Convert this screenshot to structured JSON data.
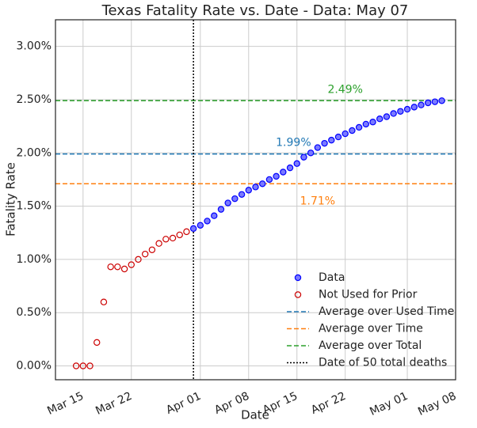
{
  "chart_data": {
    "type": "scatter",
    "title": "Texas Fatality Rate vs. Date - Data: May 07",
    "xlabel": "Date",
    "ylabel": "Fatality Rate",
    "xlim": [
      "03-11",
      "05-08"
    ],
    "ylim": [
      -0.13,
      3.25
    ],
    "xticks": [
      {
        "value": "03-15",
        "label": "Mar 15"
      },
      {
        "value": "03-22",
        "label": "Mar 22"
      },
      {
        "value": "04-01",
        "label": "Apr 01"
      },
      {
        "value": "04-08",
        "label": "Apr 08"
      },
      {
        "value": "04-15",
        "label": "Apr 15"
      },
      {
        "value": "04-22",
        "label": "Apr 22"
      },
      {
        "value": "05-01",
        "label": "May 01"
      },
      {
        "value": "05-08",
        "label": "May 08"
      }
    ],
    "yticks": [
      {
        "value": 0,
        "label": "0.00%"
      },
      {
        "value": 0.5,
        "label": "0.50%"
      },
      {
        "value": 1,
        "label": "1.00%"
      },
      {
        "value": 1.5,
        "label": "1.50%"
      },
      {
        "value": 2,
        "label": "2.00%"
      },
      {
        "value": 2.5,
        "label": "2.50%"
      },
      {
        "value": 3,
        "label": "3.00%"
      }
    ],
    "grid": true,
    "legend": "lower right",
    "series": [
      {
        "name": "Data",
        "color": "#0000ff",
        "x": [
          "03-31",
          "04-01",
          "04-02",
          "04-03",
          "04-04",
          "04-05",
          "04-06",
          "04-07",
          "04-08",
          "04-09",
          "04-10",
          "04-11",
          "04-12",
          "04-13",
          "04-14",
          "04-15",
          "04-16",
          "04-17",
          "04-18",
          "04-19",
          "04-20",
          "04-21",
          "04-22",
          "04-23",
          "04-24",
          "04-25",
          "04-26",
          "04-27",
          "04-28",
          "04-29",
          "04-30",
          "05-01",
          "05-02",
          "05-03",
          "05-04",
          "05-05",
          "05-06"
        ],
        "values": [
          1.29,
          1.32,
          1.36,
          1.41,
          1.47,
          1.53,
          1.57,
          1.61,
          1.65,
          1.68,
          1.71,
          1.75,
          1.78,
          1.82,
          1.86,
          1.9,
          1.96,
          2.0,
          2.05,
          2.09,
          2.12,
          2.15,
          2.18,
          2.21,
          2.24,
          2.27,
          2.29,
          2.32,
          2.34,
          2.37,
          2.39,
          2.41,
          2.43,
          2.45,
          2.47,
          2.48,
          2.49
        ]
      },
      {
        "name": "Not Used for Prior",
        "color": "#cc0000",
        "x": [
          "03-14",
          "03-15",
          "03-16",
          "03-17",
          "03-18",
          "03-19",
          "03-20",
          "03-21",
          "03-22",
          "03-23",
          "03-24",
          "03-25",
          "03-26",
          "03-27",
          "03-28",
          "03-29",
          "03-30"
        ],
        "values": [
          0,
          0,
          0,
          0.22,
          0.6,
          0.93,
          0.93,
          0.91,
          0.95,
          1.0,
          1.05,
          1.09,
          1.15,
          1.19,
          1.2,
          1.23,
          1.26
        ]
      }
    ],
    "hlines": [
      {
        "name": "Average over Used Time",
        "color": "#1f77b4",
        "value": 1.99,
        "label": "1.99%"
      },
      {
        "name": "Average over Time",
        "color": "#ff7f0e",
        "value": 1.71,
        "label": "1.71%"
      },
      {
        "name": "Average over Total",
        "color": "#2ca02c",
        "value": 2.49,
        "label": "2.49%"
      }
    ],
    "vlines": [
      {
        "name": "Date of 50 total deaths",
        "color": "#000000",
        "x": "03-31"
      }
    ]
  }
}
